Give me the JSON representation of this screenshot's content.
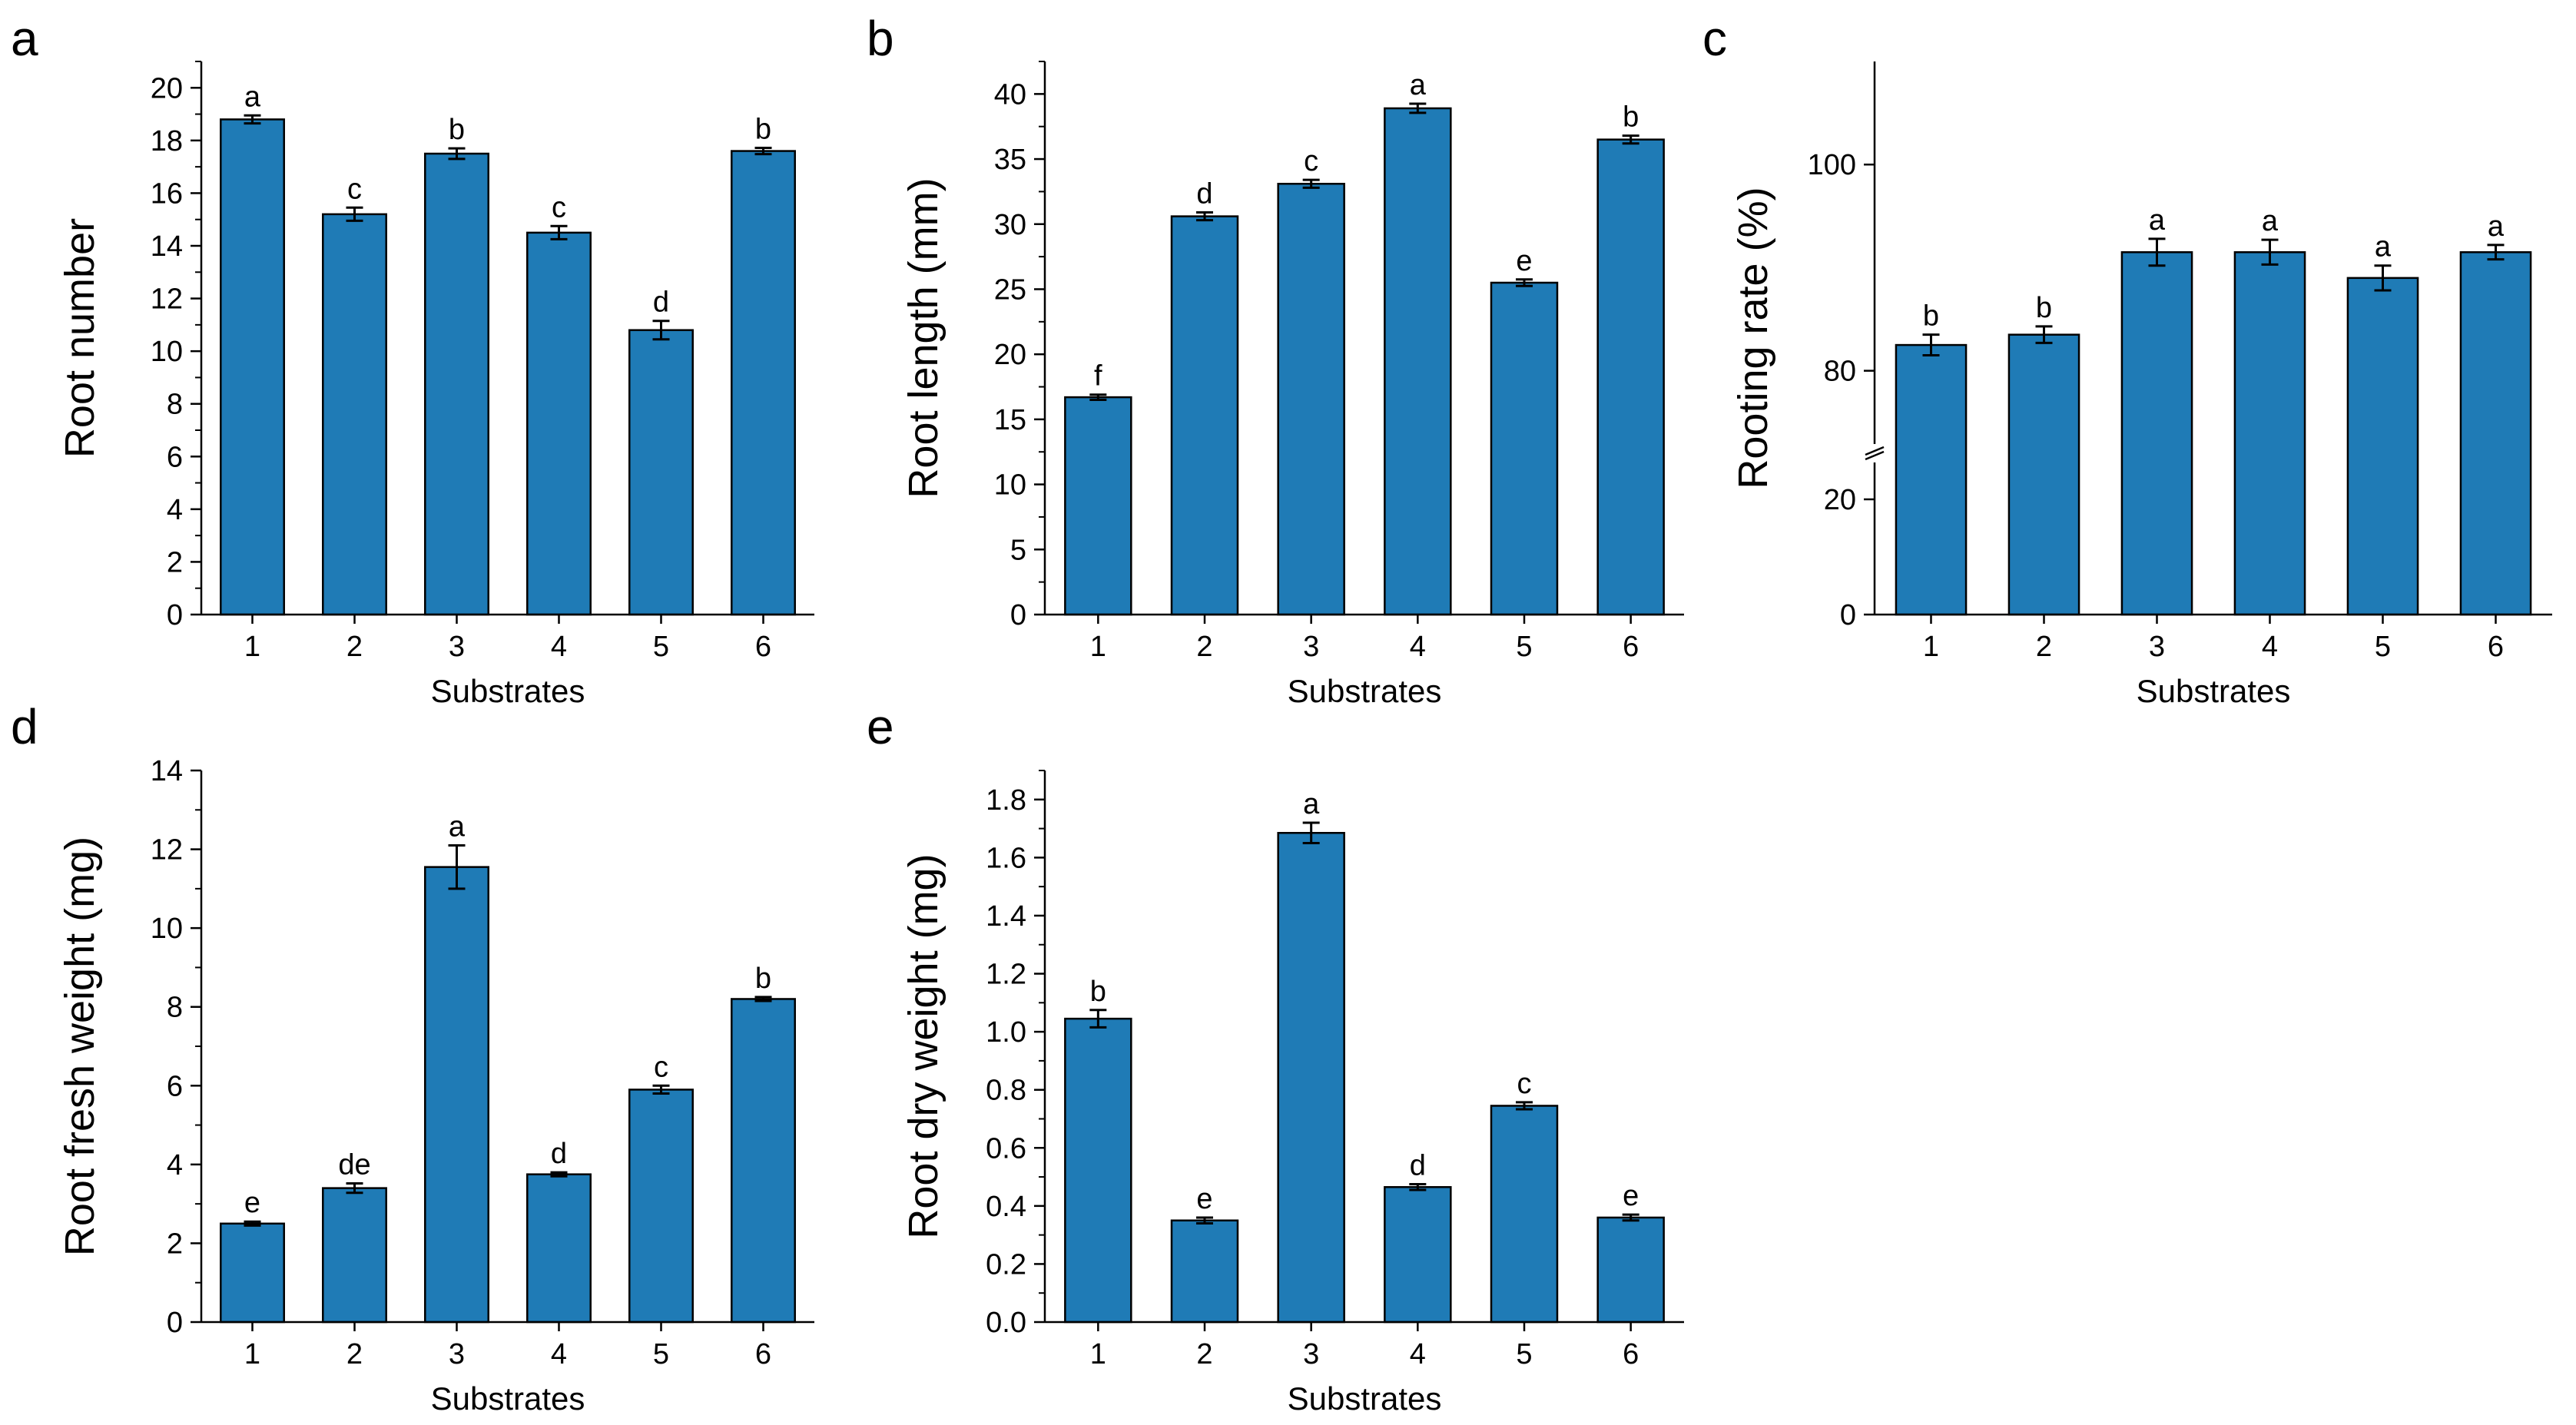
{
  "colors": {
    "bar": "#1f7bb6",
    "axis": "#000000",
    "errorbar": "#000000"
  },
  "chart_data": [
    {
      "panel": "a",
      "type": "bar",
      "categories": [
        "1",
        "2",
        "3",
        "4",
        "5",
        "6"
      ],
      "values": [
        18.8,
        15.2,
        17.5,
        14.5,
        10.8,
        17.6
      ],
      "errors": [
        0.15,
        0.25,
        0.2,
        0.25,
        0.35,
        0.12
      ],
      "labels": [
        "a",
        "c",
        "b",
        "c",
        "d",
        "b"
      ],
      "xlabel": "Substrates",
      "ylabel": "Root number",
      "ylim": [
        0,
        21
      ],
      "yticks": [
        {
          "v": 0,
          "t": "0"
        },
        {
          "v": 2,
          "t": "2"
        },
        {
          "v": 4,
          "t": "4"
        },
        {
          "v": 6,
          "t": "6"
        },
        {
          "v": 8,
          "t": "8"
        },
        {
          "v": 10,
          "t": "10"
        },
        {
          "v": 12,
          "t": "12"
        },
        {
          "v": 14,
          "t": "14"
        },
        {
          "v": 16,
          "t": "16"
        },
        {
          "v": 18,
          "t": "18"
        },
        {
          "v": 20,
          "t": "20"
        }
      ],
      "minor_step": 1
    },
    {
      "panel": "b",
      "type": "bar",
      "categories": [
        "1",
        "2",
        "3",
        "4",
        "5",
        "6"
      ],
      "values": [
        16.7,
        30.6,
        33.1,
        38.9,
        25.5,
        36.5
      ],
      "errors": [
        0.2,
        0.3,
        0.3,
        0.35,
        0.25,
        0.3
      ],
      "labels": [
        "f",
        "d",
        "c",
        "a",
        "e",
        "b"
      ],
      "xlabel": "Substrates",
      "ylabel": "Root length (mm)",
      "ylim": [
        0,
        42.5
      ],
      "yticks": [
        {
          "v": 0,
          "t": "0"
        },
        {
          "v": 5,
          "t": "5"
        },
        {
          "v": 10,
          "t": "10"
        },
        {
          "v": 15,
          "t": "15"
        },
        {
          "v": 20,
          "t": "20"
        },
        {
          "v": 25,
          "t": "25"
        },
        {
          "v": 30,
          "t": "30"
        },
        {
          "v": 35,
          "t": "35"
        },
        {
          "v": 40,
          "t": "40"
        }
      ],
      "minor_step": 2.5
    },
    {
      "panel": "c",
      "type": "bar",
      "categories": [
        "1",
        "2",
        "3",
        "4",
        "5",
        "6"
      ],
      "values": [
        82.5,
        83.5,
        91.5,
        91.5,
        89.0,
        91.5
      ],
      "errors": [
        1.0,
        0.8,
        1.3,
        1.2,
        1.2,
        0.7
      ],
      "labels": [
        "b",
        "b",
        "a",
        "a",
        "a",
        "a"
      ],
      "xlabel": "Substrates",
      "ylabel": "Rooting rate (%)",
      "y_axis_break": {
        "lower_range": [
          0,
          28
        ],
        "upper_range": [
          72,
          110
        ]
      },
      "yticks": [
        {
          "v": 0,
          "t": "0"
        },
        {
          "v": 20,
          "t": "20"
        },
        {
          "v": 80,
          "t": "80"
        },
        {
          "v": 100,
          "t": "100"
        }
      ]
    },
    {
      "panel": "d",
      "type": "bar",
      "categories": [
        "1",
        "2",
        "3",
        "4",
        "5",
        "6"
      ],
      "values": [
        2.5,
        3.4,
        11.55,
        3.75,
        5.9,
        8.2
      ],
      "errors": [
        0.05,
        0.12,
        0.55,
        0.05,
        0.1,
        0.05
      ],
      "labels": [
        "e",
        "de",
        "a",
        "d",
        "c",
        "b"
      ],
      "xlabel": "Substrates",
      "ylabel": "Root fresh weight (mg)",
      "ylim": [
        0,
        14
      ],
      "yticks": [
        {
          "v": 0,
          "t": "0"
        },
        {
          "v": 2,
          "t": "2"
        },
        {
          "v": 4,
          "t": "4"
        },
        {
          "v": 6,
          "t": "6"
        },
        {
          "v": 8,
          "t": "8"
        },
        {
          "v": 10,
          "t": "10"
        },
        {
          "v": 12,
          "t": "12"
        },
        {
          "v": 14,
          "t": "14"
        }
      ],
      "minor_step": 1
    },
    {
      "panel": "e",
      "type": "bar",
      "categories": [
        "1",
        "2",
        "3",
        "4",
        "5",
        "6"
      ],
      "values": [
        1.045,
        0.35,
        1.685,
        0.465,
        0.745,
        0.36
      ],
      "errors": [
        0.03,
        0.01,
        0.035,
        0.01,
        0.012,
        0.01
      ],
      "labels": [
        "b",
        "e",
        "a",
        "d",
        "c",
        "e"
      ],
      "xlabel": "Substrates",
      "ylabel": "Root dry weight (mg)",
      "ylim": [
        0,
        1.9
      ],
      "yticks": [
        {
          "v": 0,
          "t": "0.0"
        },
        {
          "v": 0.2,
          "t": "0.2"
        },
        {
          "v": 0.4,
          "t": "0.4"
        },
        {
          "v": 0.6,
          "t": "0.6"
        },
        {
          "v": 0.8,
          "t": "0.8"
        },
        {
          "v": 1.0,
          "t": "1.0"
        },
        {
          "v": 1.2,
          "t": "1.2"
        },
        {
          "v": 1.4,
          "t": "1.4"
        },
        {
          "v": 1.6,
          "t": "1.6"
        },
        {
          "v": 1.8,
          "t": "1.8"
        }
      ],
      "minor_step": 0.1
    }
  ]
}
